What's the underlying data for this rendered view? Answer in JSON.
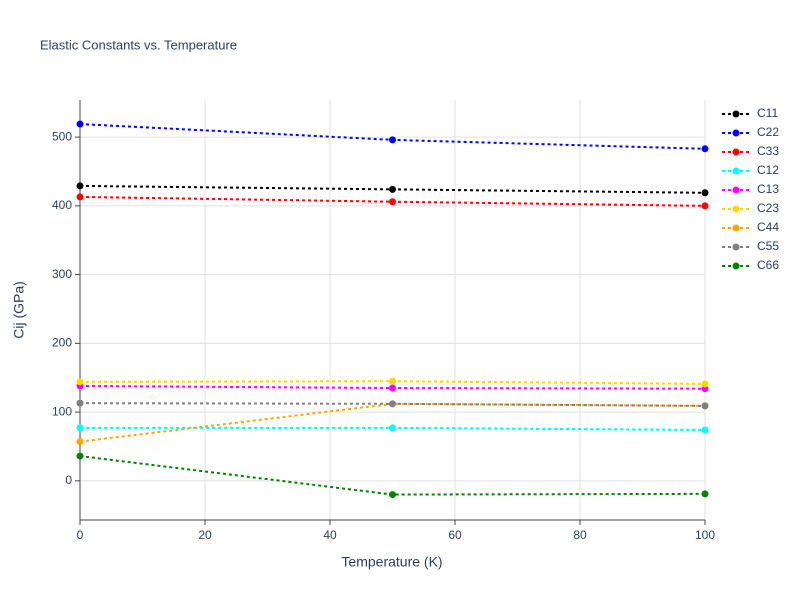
{
  "chart_data": {
    "type": "line",
    "title": "Elastic Constants vs. Temperature",
    "x_label": "Temperature (K)",
    "y_label": "Cij (GPa)",
    "x": [
      0,
      50,
      100
    ],
    "xlim": [
      0,
      100
    ],
    "xticks": [
      0,
      20,
      40,
      60,
      80,
      100
    ],
    "ylim": [
      -57,
      554
    ],
    "yticks": [
      0,
      100,
      200,
      300,
      400,
      500
    ],
    "grid": true,
    "legend": "right",
    "series": [
      {
        "name": "C11",
        "color": "#000000",
        "values": [
          429,
          424,
          419
        ]
      },
      {
        "name": "C22",
        "color": "#0000ff",
        "values": [
          519,
          496,
          483
        ]
      },
      {
        "name": "C33",
        "color": "#ff0000",
        "values": [
          413,
          406,
          400
        ]
      },
      {
        "name": "C12",
        "color": "#00ffff",
        "values": [
          77,
          77,
          74
        ]
      },
      {
        "name": "C13",
        "color": "#ff00ff",
        "values": [
          138,
          135,
          134
        ]
      },
      {
        "name": "C23",
        "color": "#ffd700",
        "values": [
          144,
          145,
          141
        ]
      },
      {
        "name": "C44",
        "color": "#ffa500",
        "values": [
          57,
          112,
          109
        ]
      },
      {
        "name": "C55",
        "color": "#808080",
        "values": [
          113,
          112,
          109
        ]
      },
      {
        "name": "C66",
        "color": "#008000",
        "values": [
          36,
          -20,
          -19
        ]
      }
    ]
  }
}
